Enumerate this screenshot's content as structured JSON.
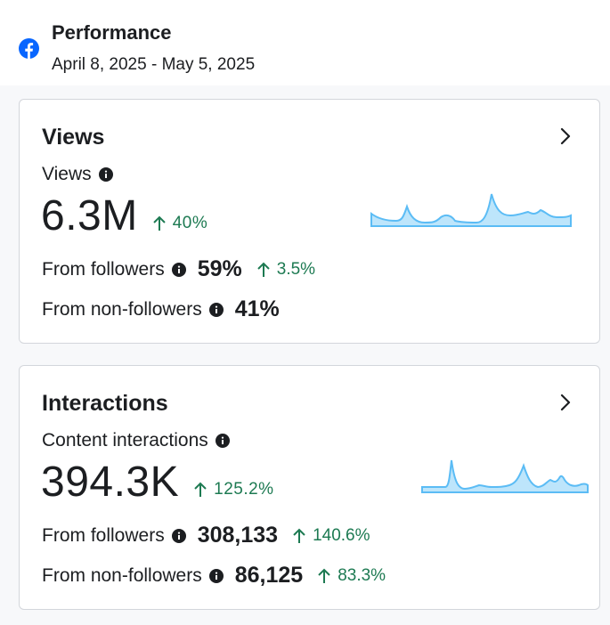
{
  "header": {
    "title": "Performance",
    "date_range": "April 8, 2025 - May 5, 2025"
  },
  "colors": {
    "accent_green": "#1d7a52",
    "facebook_blue": "#0866ff",
    "sparkline_fill": "#bde5fb",
    "sparkline_stroke": "#5bbcf5"
  },
  "views_card": {
    "title": "Views",
    "metric_label": "Views",
    "value": "6.3M",
    "change": "40%",
    "followers_label": "From followers",
    "followers_value": "59%",
    "followers_change": "3.5%",
    "nonfollowers_label": "From non-followers",
    "nonfollowers_value": "41%"
  },
  "interactions_card": {
    "title": "Interactions",
    "metric_label": "Content interactions",
    "value": "394.3K",
    "change": "125.2%",
    "followers_label": "From followers",
    "followers_value": "308,133",
    "followers_change": "140.6%",
    "nonfollowers_label": "From non-followers",
    "nonfollowers_value": "86,125",
    "nonfollowers_change": "83.3%"
  },
  "icons": [
    "facebook-icon",
    "info-icon",
    "arrow-up-icon",
    "chevron-right-icon"
  ]
}
